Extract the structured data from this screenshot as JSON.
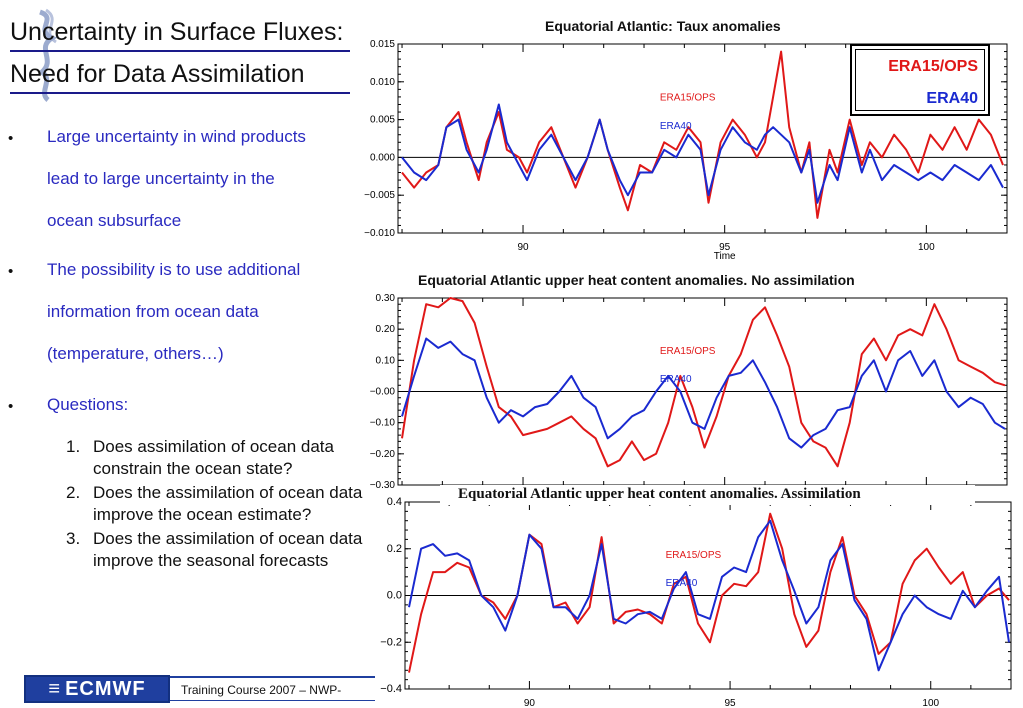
{
  "slide": {
    "title_line1": "Uncertainty in Surface Fluxes:",
    "title_line2": "Need for Data Assimilation",
    "bullets": [
      {
        "lines": [
          "Large uncertainty in wind products",
          "lead to large uncertainty in the",
          "ocean subsurface"
        ]
      },
      {
        "lines": [
          "The possibility is to use  additional",
          "information from ocean data",
          "(temperature, others…)"
        ]
      },
      {
        "lines": [
          "Questions:"
        ]
      }
    ],
    "bullet_char": "•",
    "questions": [
      {
        "num": "1.",
        "text": "Does assimilation of ocean data constrain the ocean state?"
      },
      {
        "num": "2.",
        "text": "Does the assimilation of ocean data improve the ocean estimate?"
      },
      {
        "num": "3.",
        "text": "Does the assimilation of ocean data  improve the seasonal forecasts"
      }
    ],
    "footer_logo": "ECMWF",
    "footer_text": "Training Course 2007 – NWP-"
  },
  "legend": {
    "items": [
      {
        "label": "ERA15/OPS",
        "color": "#e01818"
      },
      {
        "label": "ERA40",
        "color": "#1a2ad0"
      }
    ]
  },
  "chart_data": [
    {
      "type": "line",
      "title": "Equatorial Atlantic: Taux anomalies",
      "xlabel": "Time",
      "ylabel": "",
      "xlim": [
        86.9,
        102
      ],
      "ylim": [
        -0.01,
        0.015
      ],
      "xticks": [
        "90",
        "95",
        "100"
      ],
      "yticks": [
        "0.015",
        "0.010",
        "0.005",
        "0.000",
        "−0.005",
        "−0.010"
      ],
      "inner_labels": [
        "ERA15/OPS",
        "ERA40"
      ],
      "series": [
        {
          "name": "ERA15/OPS",
          "color": "#e01818",
          "x": [
            87.0,
            87.3,
            87.6,
            87.9,
            88.1,
            88.4,
            88.6,
            88.9,
            89.1,
            89.4,
            89.6,
            89.9,
            90.1,
            90.4,
            90.7,
            91.0,
            91.3,
            91.6,
            91.9,
            92.1,
            92.4,
            92.6,
            92.9,
            93.2,
            93.5,
            93.8,
            94.1,
            94.4,
            94.6,
            94.9,
            95.2,
            95.5,
            95.8,
            96.0,
            96.2,
            96.4,
            96.6,
            96.9,
            97.1,
            97.3,
            97.6,
            97.8,
            98.1,
            98.4,
            98.6,
            98.9,
            99.2,
            99.5,
            99.8,
            100.1,
            100.4,
            100.7,
            101.0,
            101.3,
            101.6,
            101.9
          ],
          "y": [
            -0.002,
            -0.004,
            -0.002,
            -0.001,
            0.004,
            0.006,
            0.002,
            -0.003,
            0.002,
            0.006,
            0.001,
            0.0,
            -0.002,
            0.002,
            0.004,
            0.0,
            -0.004,
            0.0,
            0.005,
            0.001,
            -0.004,
            -0.007,
            -0.001,
            -0.002,
            0.002,
            0.001,
            0.004,
            0.002,
            -0.006,
            0.002,
            0.005,
            0.003,
            0.0,
            0.002,
            0.008,
            0.014,
            0.004,
            -0.002,
            0.002,
            -0.008,
            0.001,
            -0.002,
            0.005,
            -0.001,
            0.002,
            0.0,
            0.003,
            0.001,
            -0.002,
            0.003,
            0.001,
            0.004,
            0.001,
            0.005,
            0.003,
            -0.001
          ]
        },
        {
          "name": "ERA40",
          "color": "#1a2ad0",
          "x": [
            87.0,
            87.3,
            87.6,
            87.9,
            88.1,
            88.4,
            88.6,
            88.9,
            89.1,
            89.4,
            89.6,
            89.9,
            90.1,
            90.4,
            90.7,
            91.0,
            91.3,
            91.6,
            91.9,
            92.1,
            92.4,
            92.6,
            92.9,
            93.2,
            93.5,
            93.8,
            94.1,
            94.4,
            94.6,
            94.9,
            95.2,
            95.5,
            95.8,
            96.0,
            96.2,
            96.4,
            96.6,
            96.9,
            97.1,
            97.3,
            97.6,
            97.8,
            98.1,
            98.4,
            98.6,
            98.9,
            99.2,
            99.5,
            99.8,
            100.1,
            100.4,
            100.7,
            101.0,
            101.3,
            101.6,
            101.9
          ],
          "y": [
            0.0,
            -0.002,
            -0.003,
            -0.001,
            0.004,
            0.005,
            0.001,
            -0.002,
            0.001,
            0.007,
            0.002,
            -0.001,
            -0.003,
            0.001,
            0.003,
            0.0,
            -0.003,
            0.0,
            0.005,
            0.001,
            -0.003,
            -0.005,
            -0.002,
            -0.002,
            0.001,
            0.0,
            0.003,
            0.001,
            -0.005,
            0.001,
            0.004,
            0.002,
            0.001,
            0.003,
            0.004,
            0.003,
            0.002,
            -0.002,
            0.001,
            -0.006,
            -0.001,
            -0.003,
            0.004,
            -0.002,
            0.001,
            -0.003,
            -0.001,
            -0.002,
            -0.003,
            -0.002,
            -0.003,
            -0.001,
            -0.002,
            -0.003,
            -0.001,
            -0.004
          ]
        }
      ]
    },
    {
      "type": "line",
      "title": "Equatorial Atlantic upper heat content  anomalies. No assimilation",
      "xlabel": "",
      "ylabel": "",
      "xlim": [
        86.9,
        102
      ],
      "ylim": [
        -0.3,
        0.3
      ],
      "xticks": [],
      "yticks": [
        "0.30",
        "0.20",
        "0.10",
        "−0.00",
        "−0.10",
        "−0.20",
        "−0.30"
      ],
      "inner_labels": [
        "ERA15/OPS",
        "ERA40"
      ],
      "series": [
        {
          "name": "ERA15/OPS",
          "color": "#e01818",
          "x": [
            87.0,
            87.3,
            87.6,
            87.9,
            88.2,
            88.5,
            88.8,
            89.1,
            89.4,
            89.7,
            90.0,
            90.3,
            90.6,
            90.9,
            91.2,
            91.5,
            91.8,
            92.1,
            92.4,
            92.7,
            93.0,
            93.3,
            93.6,
            93.9,
            94.2,
            94.5,
            94.8,
            95.1,
            95.4,
            95.7,
            96.0,
            96.3,
            96.6,
            96.9,
            97.2,
            97.5,
            97.8,
            98.1,
            98.4,
            98.7,
            99.0,
            99.3,
            99.6,
            99.9,
            100.2,
            100.5,
            100.8,
            101.1,
            101.4,
            101.7,
            101.95
          ],
          "y": [
            -0.15,
            0.1,
            0.28,
            0.27,
            0.3,
            0.29,
            0.22,
            0.08,
            -0.05,
            -0.08,
            -0.14,
            -0.13,
            -0.12,
            -0.1,
            -0.08,
            -0.12,
            -0.15,
            -0.24,
            -0.22,
            -0.16,
            -0.22,
            -0.2,
            -0.1,
            0.05,
            -0.05,
            -0.18,
            -0.08,
            0.05,
            0.12,
            0.23,
            0.27,
            0.18,
            0.08,
            -0.1,
            -0.16,
            -0.18,
            -0.24,
            -0.1,
            0.12,
            0.17,
            0.1,
            0.18,
            0.2,
            0.18,
            0.28,
            0.2,
            0.1,
            0.08,
            0.06,
            0.03,
            0.02
          ]
        },
        {
          "name": "ERA40",
          "color": "#1a2ad0",
          "x": [
            87.0,
            87.3,
            87.6,
            87.9,
            88.2,
            88.5,
            88.8,
            89.1,
            89.4,
            89.7,
            90.0,
            90.3,
            90.6,
            90.9,
            91.2,
            91.5,
            91.8,
            92.1,
            92.4,
            92.7,
            93.0,
            93.3,
            93.6,
            93.9,
            94.2,
            94.5,
            94.8,
            95.1,
            95.4,
            95.7,
            96.0,
            96.3,
            96.6,
            96.9,
            97.2,
            97.5,
            97.8,
            98.1,
            98.4,
            98.7,
            99.0,
            99.3,
            99.6,
            99.9,
            100.2,
            100.5,
            100.8,
            101.1,
            101.4,
            101.7,
            101.95
          ],
          "y": [
            -0.08,
            0.05,
            0.17,
            0.14,
            0.16,
            0.12,
            0.1,
            -0.02,
            -0.1,
            -0.06,
            -0.08,
            -0.05,
            -0.04,
            0.0,
            0.05,
            -0.02,
            -0.05,
            -0.15,
            -0.12,
            -0.08,
            -0.06,
            0.0,
            0.05,
            0.0,
            -0.1,
            -0.12,
            -0.02,
            0.05,
            0.06,
            0.1,
            0.03,
            -0.05,
            -0.15,
            -0.18,
            -0.14,
            -0.12,
            -0.06,
            -0.05,
            0.05,
            0.1,
            0.0,
            0.1,
            0.13,
            0.05,
            0.1,
            0.0,
            -0.05,
            -0.02,
            -0.04,
            -0.1,
            -0.12
          ]
        }
      ]
    },
    {
      "type": "line",
      "title": "Equatorial  Atlantic upper heat content anomalies.  Assimilation",
      "xlabel": "",
      "ylabel": "",
      "xlim": [
        86.9,
        102
      ],
      "ylim": [
        -0.4,
        0.4
      ],
      "xticks": [
        "90",
        "95",
        "100"
      ],
      "yticks": [
        "0.4",
        "0.2",
        "0.0",
        "−0.2",
        "−0.4"
      ],
      "inner_labels": [
        "ERA15/OPS",
        "ERA40"
      ],
      "series": [
        {
          "name": "ERA15/OPS",
          "color": "#e01818",
          "x": [
            87.0,
            87.3,
            87.6,
            87.9,
            88.2,
            88.5,
            88.8,
            89.1,
            89.4,
            89.7,
            90.0,
            90.3,
            90.6,
            90.9,
            91.2,
            91.5,
            91.8,
            92.1,
            92.4,
            92.7,
            93.0,
            93.3,
            93.6,
            93.9,
            94.2,
            94.5,
            94.8,
            95.1,
            95.4,
            95.7,
            96.0,
            96.3,
            96.6,
            96.9,
            97.2,
            97.5,
            97.8,
            98.1,
            98.4,
            98.7,
            99.0,
            99.3,
            99.6,
            99.9,
            100.2,
            100.5,
            100.8,
            101.1,
            101.4,
            101.7,
            101.95
          ],
          "y": [
            -0.33,
            -0.08,
            0.1,
            0.1,
            0.14,
            0.12,
            0.0,
            -0.03,
            -0.1,
            0.0,
            0.26,
            0.22,
            -0.05,
            -0.03,
            -0.12,
            -0.05,
            0.25,
            -0.12,
            -0.07,
            -0.06,
            -0.08,
            -0.12,
            0.05,
            0.08,
            -0.12,
            -0.2,
            0.0,
            0.05,
            0.04,
            0.1,
            0.35,
            0.2,
            -0.08,
            -0.22,
            -0.15,
            0.1,
            0.25,
            0.0,
            -0.08,
            -0.25,
            -0.2,
            0.05,
            0.15,
            0.2,
            0.12,
            0.05,
            0.1,
            -0.05,
            0.0,
            0.03,
            -0.02
          ]
        },
        {
          "name": "ERA40",
          "color": "#1a2ad0",
          "x": [
            87.0,
            87.3,
            87.6,
            87.9,
            88.2,
            88.5,
            88.8,
            89.1,
            89.4,
            89.7,
            90.0,
            90.3,
            90.6,
            90.9,
            91.2,
            91.5,
            91.8,
            92.1,
            92.4,
            92.7,
            93.0,
            93.3,
            93.6,
            93.9,
            94.2,
            94.5,
            94.8,
            95.1,
            95.4,
            95.7,
            96.0,
            96.3,
            96.6,
            96.9,
            97.2,
            97.5,
            97.8,
            98.1,
            98.4,
            98.7,
            99.0,
            99.3,
            99.6,
            99.9,
            100.2,
            100.5,
            100.8,
            101.1,
            101.4,
            101.7,
            101.95
          ],
          "y": [
            -0.05,
            0.2,
            0.22,
            0.17,
            0.18,
            0.15,
            0.0,
            -0.05,
            -0.15,
            0.0,
            0.26,
            0.2,
            -0.05,
            -0.05,
            -0.1,
            0.0,
            0.22,
            -0.1,
            -0.12,
            -0.08,
            -0.07,
            -0.1,
            0.03,
            0.1,
            -0.08,
            -0.1,
            0.08,
            0.12,
            0.1,
            0.25,
            0.32,
            0.15,
            0.02,
            -0.12,
            -0.05,
            0.15,
            0.22,
            -0.02,
            -0.1,
            -0.32,
            -0.2,
            -0.08,
            0.0,
            -0.05,
            -0.08,
            -0.1,
            0.02,
            -0.05,
            0.02,
            0.08,
            -0.2
          ]
        }
      ]
    }
  ]
}
